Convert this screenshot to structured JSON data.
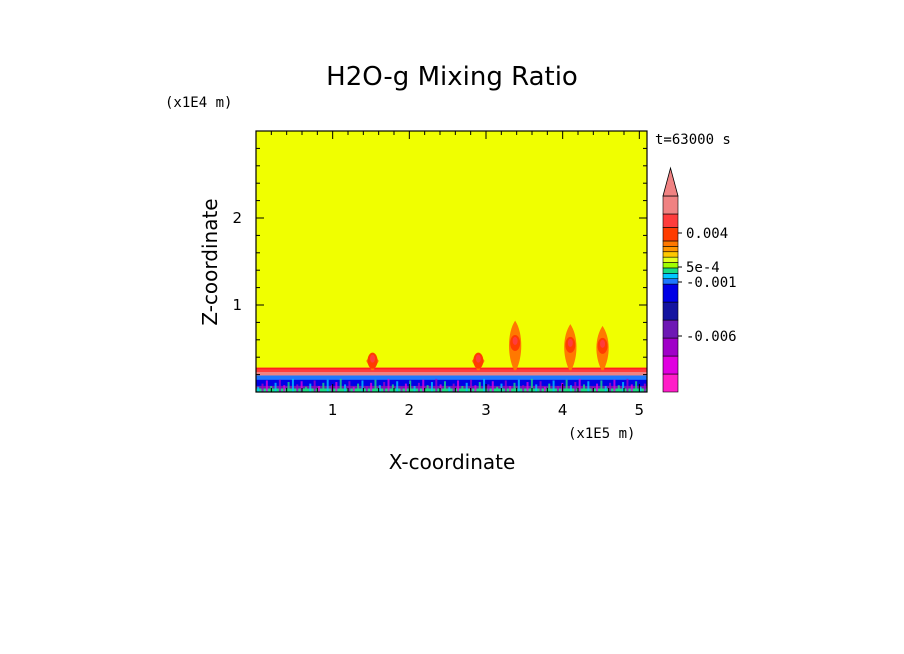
{
  "chart_data": {
    "type": "heatmap",
    "title": "H2O-g Mixing Ratio",
    "xlabel": "X-coordinate",
    "ylabel": "Z-coordinate",
    "x_scale_label": "(x1E5 m)",
    "y_scale_label": "(x1E4 m)",
    "time_label": "t=63000 s",
    "xlim": [
      0,
      5.1
    ],
    "ylim": [
      0,
      3.0
    ],
    "x_ticks": [
      "1",
      "2",
      "3",
      "4",
      "5"
    ],
    "y_ticks": [
      "1",
      "2"
    ],
    "background_color": "#f0ff00",
    "plumes": [
      {
        "x": 1.52,
        "top": 0.45
      },
      {
        "x": 2.9,
        "top": 0.45
      },
      {
        "x": 3.38,
        "top": 0.82
      },
      {
        "x": 4.1,
        "top": 0.78
      },
      {
        "x": 4.52,
        "top": 0.76
      }
    ],
    "colorbar": {
      "levels": [
        "#ff1ec8",
        "#e000e0",
        "#a000c8",
        "#6e18b4",
        "#1414a0",
        "#0000e6",
        "#1e78ff",
        "#00c8ff",
        "#18dc82",
        "#a0ff00",
        "#e6ff1e",
        "#ffc800",
        "#ff9600",
        "#ff7800",
        "#ff3c00",
        "#ff3c3c",
        "#f08282"
      ],
      "labels": [
        "0.004",
        "5e-4",
        "-0.001",
        "-0.006"
      ],
      "top_arrow_color": "#f08282"
    }
  }
}
